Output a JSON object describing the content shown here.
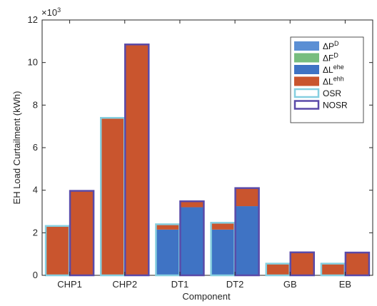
{
  "chart_data": {
    "type": "bar",
    "stacked": true,
    "grouped": true,
    "xlabel": "Component",
    "ylabel": "EH  Load  Curtailment (kWh)",
    "y_exponent_label": "×10",
    "y_exponent_power": "3",
    "ylim": [
      0,
      12
    ],
    "yticks": [
      "0",
      "2",
      "4",
      "6",
      "8",
      "10",
      "12"
    ],
    "categories": [
      "CHP1",
      "CHP2",
      "DT1",
      "DT2",
      "GB",
      "EB"
    ],
    "groups": [
      "OSR",
      "NOSR"
    ],
    "series": [
      {
        "name": "ΔP",
        "sup": "D",
        "color": "#5b8fd4",
        "values": {
          "OSR": [
            0,
            0,
            0,
            0,
            0,
            0
          ],
          "NOSR": [
            0,
            0,
            0,
            0,
            0,
            0
          ]
        }
      },
      {
        "name": "ΔF",
        "sup": "D",
        "color": "#77bd7e",
        "values": {
          "OSR": [
            0,
            0,
            0,
            0,
            0,
            0
          ],
          "NOSR": [
            0,
            0,
            0,
            0,
            0,
            0
          ]
        }
      },
      {
        "name": "ΔL",
        "sup": "ehe",
        "color": "#3f73c4",
        "values": {
          "OSR": [
            0,
            0,
            2.15,
            2.15,
            0,
            0
          ],
          "NOSR": [
            0,
            0,
            3.2,
            3.25,
            0,
            0
          ]
        }
      },
      {
        "name": "ΔL",
        "sup": "ehh",
        "color": "#c9552e",
        "values": {
          "OSR": [
            2.32,
            7.4,
            0.25,
            0.32,
            0.55,
            0.55
          ],
          "NOSR": [
            3.97,
            10.85,
            0.28,
            0.85,
            1.08,
            1.07
          ]
        }
      }
    ],
    "group_outline_colors": {
      "OSR": "#86cfe0",
      "NOSR": "#5a4aa8"
    },
    "legend_position": "top-right"
  }
}
